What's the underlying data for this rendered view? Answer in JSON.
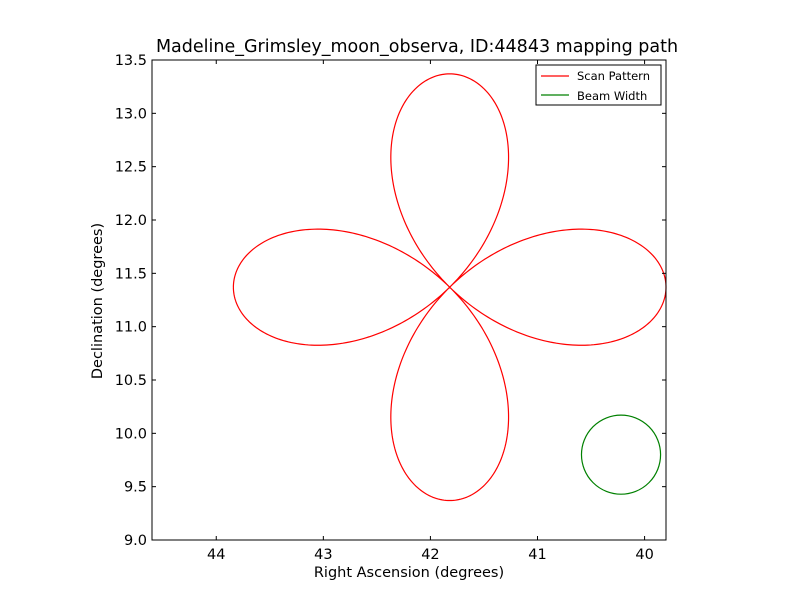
{
  "chart_data": {
    "type": "line",
    "title": "Madeline_Grimsley_moon_observa, ID:44843 mapping path",
    "xlabel": "Right Ascension (degrees)",
    "ylabel": "Declination (degrees)",
    "xlim": [
      44.6,
      39.8
    ],
    "ylim": [
      9.0,
      13.5
    ],
    "x_ticks": [
      44,
      43,
      42,
      41,
      40
    ],
    "y_ticks": [
      9.0,
      9.5,
      10.0,
      10.5,
      11.0,
      11.5,
      12.0,
      12.5,
      13.0,
      13.5
    ],
    "grid": false,
    "legend_position": "top-right",
    "series": [
      {
        "name": "Scan Pattern",
        "color": "#ff0000",
        "kind": "rose-curve",
        "center": [
          41.82,
          11.37
        ],
        "petal_reach_ra": 2.02,
        "petal_reach_dec": 2.0,
        "petals": 4,
        "start_ra": 43.86
      },
      {
        "name": "Beam Width",
        "color": "#008000",
        "kind": "circle",
        "center": [
          40.22,
          9.8
        ],
        "radius": 0.37
      }
    ]
  }
}
